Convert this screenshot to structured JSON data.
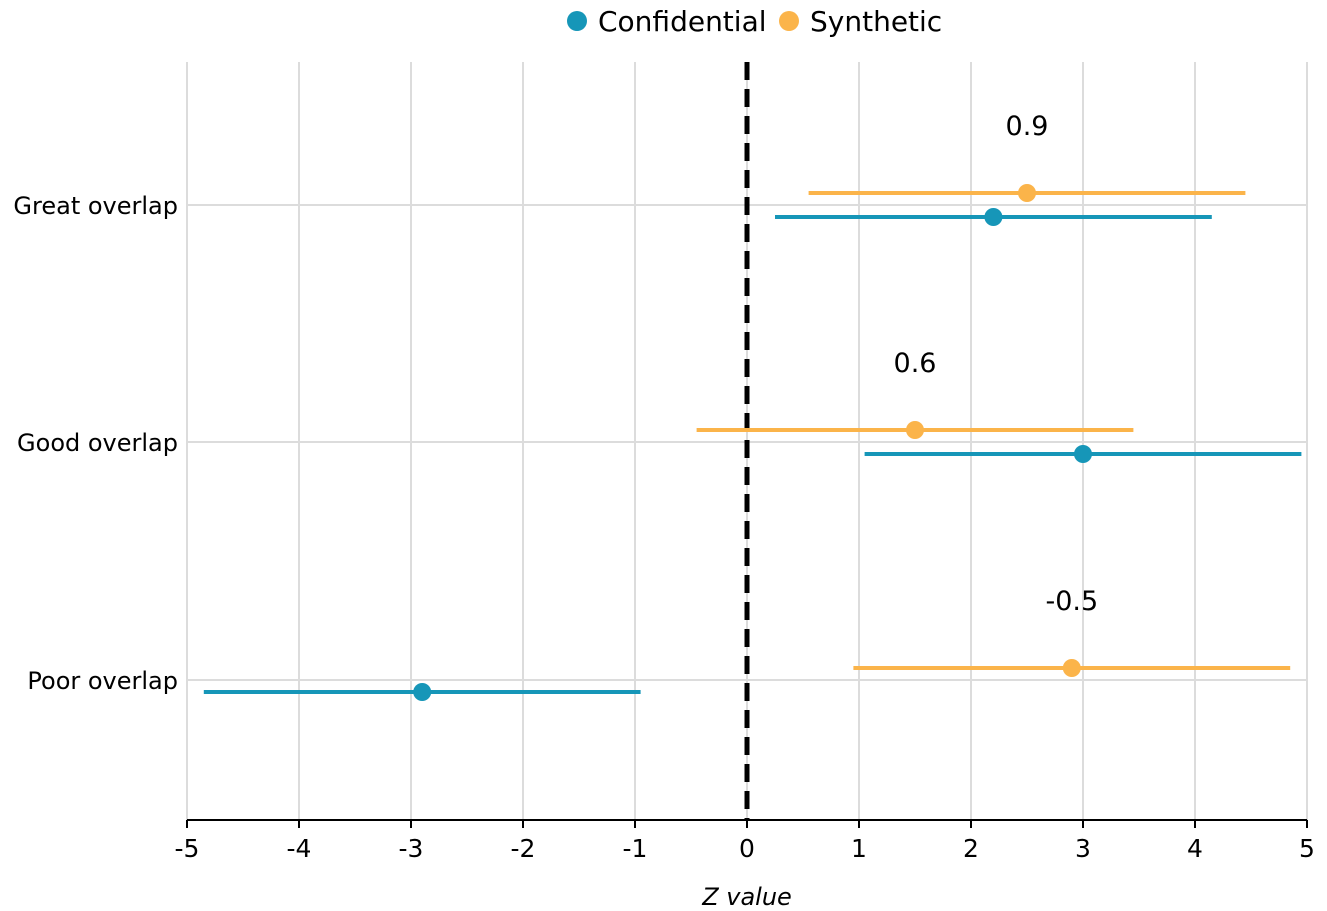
{
  "chart_data": {
    "type": "scatter",
    "subtype": "dot-and-interval",
    "orientation": "horizontal",
    "xlabel": "Z value",
    "ylabel": "",
    "xlim": [
      -5,
      5
    ],
    "xticks": [
      -5,
      -4,
      -3,
      -2,
      -1,
      0,
      1,
      2,
      3,
      4,
      5
    ],
    "categories": [
      "Great overlap",
      "Good overlap",
      "Poor overlap"
    ],
    "reference_line": {
      "x": 0,
      "style": "dashed",
      "color": "#000000"
    },
    "grid": true,
    "legend": {
      "position": "top-center"
    },
    "series": [
      {
        "name": "Confidential",
        "color": "#1696b8",
        "points": [
          {
            "category": "Great overlap",
            "value": 2.2,
            "low": 0.25,
            "high": 4.15
          },
          {
            "category": "Good overlap",
            "value": 3.0,
            "low": 1.05,
            "high": 4.95
          },
          {
            "category": "Poor overlap",
            "value": -2.9,
            "low": -4.85,
            "high": -0.95
          }
        ]
      },
      {
        "name": "Synthetic",
        "color": "#fbb44a",
        "points": [
          {
            "category": "Great overlap",
            "value": 2.5,
            "low": 0.55,
            "high": 4.45
          },
          {
            "category": "Good overlap",
            "value": 1.5,
            "low": -0.45,
            "high": 3.45
          },
          {
            "category": "Poor overlap",
            "value": 2.9,
            "low": 0.95,
            "high": 4.85
          }
        ]
      }
    ],
    "annotations": [
      {
        "category": "Great overlap",
        "text": "0.9",
        "x": 2.5
      },
      {
        "category": "Good overlap",
        "text": "0.6",
        "x": 1.5
      },
      {
        "category": "Poor overlap",
        "text": "-0.5",
        "x": 2.9
      }
    ]
  }
}
